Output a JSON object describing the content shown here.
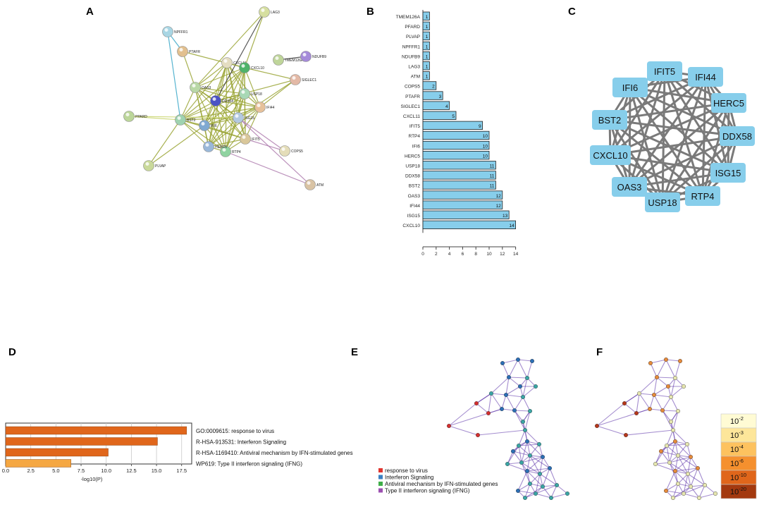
{
  "panels": {
    "A": "A",
    "B": "B",
    "C": "C",
    "D": "D",
    "E": "E",
    "F": "F"
  },
  "panel_a": {
    "nodes": [
      {
        "id": "LAG3",
        "label": "LAG3",
        "color": "#d6dfa0"
      },
      {
        "id": "NPFFR1",
        "label": "NPFFR1",
        "color": "#a9d6e4"
      },
      {
        "id": "PTAFR",
        "label": "PTAFR",
        "color": "#e2c08f"
      },
      {
        "id": "CXCL11",
        "label": "CXCL11",
        "color": "#e4ddc1"
      },
      {
        "id": "CXCL10",
        "label": "CXCL10",
        "color": "#4fb36a"
      },
      {
        "id": "TMEM126A",
        "label": "TMEM126A",
        "color": "#bfd59a"
      },
      {
        "id": "NDUFB9",
        "label": "NDUFB9",
        "color": "#a58bd9"
      },
      {
        "id": "SIGLEC1",
        "label": "SIGLEC1",
        "color": "#e3b9a6"
      },
      {
        "id": "OAS3",
        "label": "OAS3",
        "color": "#b9d8a6"
      },
      {
        "id": "DDX58",
        "label": "DDX58",
        "color": "#4b52c4"
      },
      {
        "id": "USP18",
        "label": "USP18",
        "color": "#a8d8b5"
      },
      {
        "id": "IFI44",
        "label": "IFI44",
        "color": "#e6c19a"
      },
      {
        "id": "PPARD",
        "label": "PPARD",
        "color": "#bcd69a"
      },
      {
        "id": "BST2",
        "label": "BST2",
        "color": "#9fd3b0"
      },
      {
        "id": "IFI6",
        "label": "IFI6",
        "color": "#7fa9d1"
      },
      {
        "id": "ISG15",
        "label": "ISG15",
        "color": "#b3c9e0"
      },
      {
        "id": "IFIT5",
        "label": "IFIT5",
        "color": "#d9c79a"
      },
      {
        "id": "RTP4",
        "label": "RTP4",
        "color": "#8fd3a0"
      },
      {
        "id": "HERC5",
        "label": "HERC5",
        "color": "#9ab8d9"
      },
      {
        "id": "PLVAP",
        "label": "PLVAP",
        "color": "#c9d99a"
      },
      {
        "id": "COPS5",
        "label": "COPS5",
        "color": "#e4ddb9"
      },
      {
        "id": "ATM",
        "label": "ATM",
        "color": "#d9c3a4"
      }
    ]
  },
  "panel_b": {
    "chart_data": {
      "type": "bar",
      "orientation": "horizontal",
      "categories": [
        "TMEM126A",
        "PFARD",
        "PLVAP",
        "NPFFR1",
        "NDUFB9",
        "LAG3",
        "ATM",
        "COPS5",
        "PTAFR",
        "SIGLEC1",
        "CXCL11",
        "IFIT5",
        "RTP4",
        "IFI6",
        "HERC5",
        "USP18",
        "DDX58",
        "BST2",
        "OAS3",
        "IFI44",
        "ISG15",
        "CXCL10"
      ],
      "values": [
        1,
        1,
        1,
        1,
        1,
        1,
        1,
        2,
        3,
        4,
        5,
        9,
        10,
        10,
        10,
        11,
        11,
        11,
        12,
        12,
        13,
        14
      ],
      "xlim": [
        0,
        14
      ],
      "xticks": [
        "0",
        "2",
        "4",
        "6",
        "8",
        "10",
        "12",
        "14"
      ],
      "bar_color": "#87ceeb"
    }
  },
  "panel_c": {
    "nodes": [
      "IFIT5",
      "IFI44",
      "IFI6",
      "HERC5",
      "BST2",
      "DDX58",
      "CXCL10",
      "ISG15",
      "OAS3",
      "RTP4",
      "USP18"
    ],
    "node_color": "#87ceeb"
  },
  "panel_d": {
    "chart_data": {
      "type": "bar",
      "orientation": "horizontal",
      "categories": [
        "GO:0009615: response to virus",
        "R-HSA-913531: Interferon Signaling",
        "R-HSA-1169410: Antiviral mechanism by IFN-stimulated genes",
        "WP619: Type II interferon signaling (IFNG)"
      ],
      "values": [
        18.0,
        15.1,
        10.2,
        6.5
      ],
      "colors": [
        "#e0661b",
        "#e0661b",
        "#e0661b",
        "#f5a742"
      ],
      "xlim": [
        0,
        18.5
      ],
      "xticks": [
        "0.0",
        "2.5",
        "5.0",
        "7.5",
        "10.0",
        "12.5",
        "15.0",
        "17.5"
      ],
      "xlabel": "-log10(P)"
    }
  },
  "panel_e": {
    "legend": [
      {
        "label": "response to virus",
        "color": "#e0342e"
      },
      {
        "label": "Interferon Signaling",
        "color": "#3a7fc2"
      },
      {
        "label": "Antiviral mechanism by IFN-stimulated genes",
        "color": "#3fae49"
      },
      {
        "label": "Type II interferon signaling (IFNG)",
        "color": "#9b4fb0"
      }
    ]
  },
  "panel_f": {
    "scale": [
      {
        "base": "10",
        "exp": "-2",
        "color": "#fffbd4"
      },
      {
        "base": "10",
        "exp": "-3",
        "color": "#fde69a"
      },
      {
        "base": "10",
        "exp": "-4",
        "color": "#fdc25f"
      },
      {
        "base": "10",
        "exp": "-6",
        "color": "#f5902e"
      },
      {
        "base": "10",
        "exp": "-10",
        "color": "#e0661b"
      },
      {
        "base": "10",
        "exp": "-20",
        "color": "#a3390f"
      }
    ]
  }
}
